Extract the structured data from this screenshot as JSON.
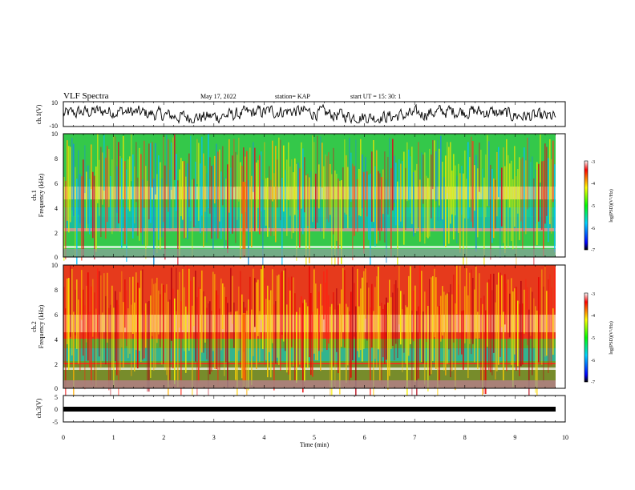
{
  "header": {
    "title": "VLF Spectra",
    "date": "May 17, 2022",
    "station": "station= KAP",
    "start": "start  UT  =   15: 30: 1"
  },
  "chart_data": [
    {
      "type": "line",
      "ylabel": "ch.1(V)",
      "ylim": [
        -10,
        10
      ],
      "yticks": [
        "10",
        "-10"
      ],
      "xlim": [
        0,
        10
      ],
      "series": [
        {
          "values_description": "noisy voltage trace oscillating roughly between -5 and +7 V"
        }
      ]
    },
    {
      "type": "heatmap",
      "ylabel": "ch.1\nFrequency (kHz)",
      "ylim": [
        0,
        10
      ],
      "yticks": [
        "0",
        "2",
        "4",
        "6",
        "8",
        "10"
      ],
      "xlim": [
        0,
        10
      ]
    },
    {
      "type": "heatmap",
      "ylabel": "ch.2\nFrequency (kHz)",
      "ylim": [
        0,
        10
      ],
      "yticks": [
        "0",
        "2",
        "4",
        "6",
        "8",
        "10"
      ],
      "xlim": [
        0,
        10
      ]
    },
    {
      "type": "line",
      "ylabel": "ch.3(V)",
      "ylim": [
        -5,
        5
      ],
      "yticks": [
        "5",
        "0",
        "-5"
      ],
      "xlim": [
        0,
        10
      ],
      "xlabel": "Time  (min)",
      "xticks": [
        "0",
        "1",
        "2",
        "3",
        "4",
        "5",
        "6",
        "7",
        "8",
        "9",
        "10"
      ]
    }
  ],
  "colorbar": {
    "label": "log(PSD)(V²/Hz)",
    "ticks": [
      "-3",
      "-4",
      "-5",
      "-6",
      "-7"
    ],
    "range": [
      -7,
      -3
    ]
  },
  "colors": {
    "ch1_bg": "#2ecc40",
    "ch2_bg": "#e8301c"
  }
}
